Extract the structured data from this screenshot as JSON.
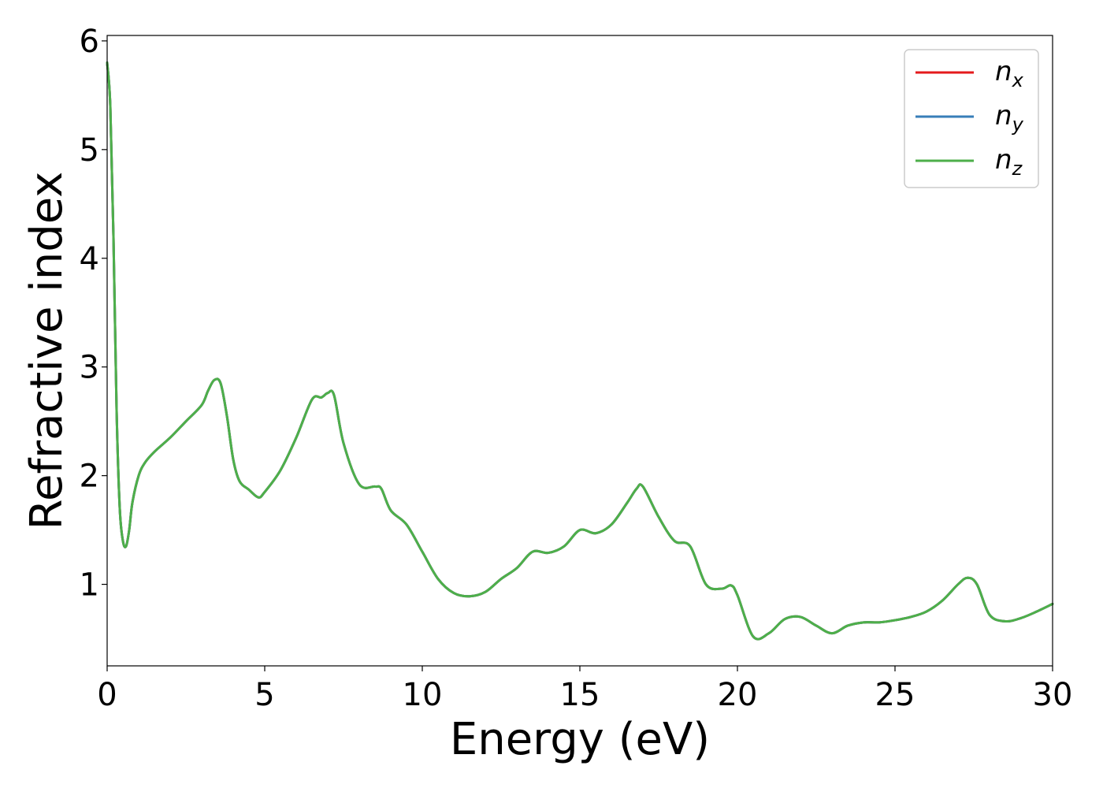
{
  "chart_data": {
    "type": "line",
    "xlabel": "Energy (eV)",
    "ylabel": "Refractive index",
    "xlim": [
      0,
      30
    ],
    "ylim": [
      0.25,
      6.05
    ],
    "x_ticks": [
      0,
      5,
      10,
      15,
      20,
      25,
      30
    ],
    "y_ticks": [
      1,
      2,
      3,
      4,
      5,
      6
    ],
    "x_tick_labels": [
      "0",
      "5",
      "10",
      "15",
      "20",
      "25",
      "30"
    ],
    "y_tick_labels": [
      "1",
      "2",
      "3",
      "4",
      "5",
      "6"
    ],
    "grid": false,
    "legend_position": "top-right",
    "x": [
      0,
      0.1,
      0.2,
      0.3,
      0.4,
      0.5,
      0.6,
      0.7,
      0.8,
      1.0,
      1.2,
      1.5,
      2.0,
      2.5,
      3.0,
      3.2,
      3.4,
      3.6,
      3.8,
      4.0,
      4.2,
      4.5,
      4.8,
      5.0,
      5.5,
      6.0,
      6.5,
      6.8,
      7.0,
      7.2,
      7.5,
      8.0,
      8.5,
      8.7,
      9.0,
      9.5,
      10.0,
      10.5,
      11.0,
      11.5,
      12.0,
      12.5,
      13.0,
      13.5,
      14.0,
      14.5,
      15.0,
      15.5,
      16.0,
      16.5,
      16.8,
      17.0,
      17.5,
      18.0,
      18.5,
      19.0,
      19.5,
      19.8,
      20.0,
      20.5,
      21.0,
      21.5,
      22.0,
      22.5,
      23.0,
      23.5,
      24.0,
      24.5,
      25.0,
      25.5,
      26.0,
      26.5,
      27.0,
      27.3,
      27.6,
      28.0,
      28.5,
      29.0,
      29.5,
      30.0
    ],
    "series": [
      {
        "name": "n_x",
        "legend_main": "n",
        "legend_sub": "x",
        "color": "#e41a1c",
        "values": [
          5.8,
          5.4,
          4.2,
          2.6,
          1.7,
          1.4,
          1.35,
          1.5,
          1.75,
          2.0,
          2.12,
          2.22,
          2.35,
          2.5,
          2.65,
          2.78,
          2.88,
          2.85,
          2.55,
          2.15,
          1.95,
          1.87,
          1.8,
          1.85,
          2.05,
          2.35,
          2.7,
          2.72,
          2.76,
          2.74,
          2.3,
          1.92,
          1.9,
          1.88,
          1.68,
          1.55,
          1.3,
          1.05,
          0.92,
          0.89,
          0.93,
          1.05,
          1.15,
          1.3,
          1.29,
          1.35,
          1.5,
          1.47,
          1.55,
          1.75,
          1.88,
          1.9,
          1.62,
          1.4,
          1.35,
          1.0,
          0.96,
          0.99,
          0.9,
          0.52,
          0.55,
          0.68,
          0.7,
          0.62,
          0.55,
          0.62,
          0.65,
          0.65,
          0.67,
          0.7,
          0.75,
          0.85,
          1.0,
          1.06,
          1.0,
          0.72,
          0.66,
          0.69,
          0.75,
          0.82
        ]
      },
      {
        "name": "n_y",
        "legend_main": "n",
        "legend_sub": "y",
        "color": "#377eb8",
        "values": [
          5.8,
          5.4,
          4.2,
          2.6,
          1.7,
          1.4,
          1.35,
          1.5,
          1.75,
          2.0,
          2.12,
          2.22,
          2.35,
          2.5,
          2.65,
          2.78,
          2.88,
          2.85,
          2.55,
          2.15,
          1.95,
          1.87,
          1.8,
          1.85,
          2.05,
          2.35,
          2.7,
          2.72,
          2.76,
          2.74,
          2.3,
          1.92,
          1.9,
          1.88,
          1.68,
          1.55,
          1.3,
          1.05,
          0.92,
          0.89,
          0.93,
          1.05,
          1.15,
          1.3,
          1.29,
          1.35,
          1.5,
          1.47,
          1.55,
          1.75,
          1.88,
          1.9,
          1.62,
          1.4,
          1.35,
          1.0,
          0.96,
          0.99,
          0.9,
          0.52,
          0.55,
          0.68,
          0.7,
          0.62,
          0.55,
          0.62,
          0.65,
          0.65,
          0.67,
          0.7,
          0.75,
          0.85,
          1.0,
          1.06,
          1.0,
          0.72,
          0.66,
          0.69,
          0.75,
          0.82
        ]
      },
      {
        "name": "n_z",
        "legend_main": "n",
        "legend_sub": "z",
        "color": "#4daf4a",
        "values": [
          5.8,
          5.4,
          4.2,
          2.6,
          1.7,
          1.4,
          1.35,
          1.5,
          1.75,
          2.0,
          2.12,
          2.22,
          2.35,
          2.5,
          2.65,
          2.78,
          2.88,
          2.85,
          2.55,
          2.15,
          1.95,
          1.87,
          1.8,
          1.85,
          2.05,
          2.35,
          2.7,
          2.72,
          2.76,
          2.74,
          2.3,
          1.92,
          1.9,
          1.88,
          1.68,
          1.55,
          1.3,
          1.05,
          0.92,
          0.89,
          0.93,
          1.05,
          1.15,
          1.3,
          1.29,
          1.35,
          1.5,
          1.47,
          1.55,
          1.75,
          1.88,
          1.9,
          1.62,
          1.4,
          1.35,
          1.0,
          0.96,
          0.99,
          0.9,
          0.52,
          0.55,
          0.68,
          0.7,
          0.62,
          0.55,
          0.62,
          0.65,
          0.65,
          0.67,
          0.7,
          0.75,
          0.85,
          1.0,
          1.06,
          1.0,
          0.72,
          0.66,
          0.69,
          0.75,
          0.82
        ]
      }
    ]
  }
}
